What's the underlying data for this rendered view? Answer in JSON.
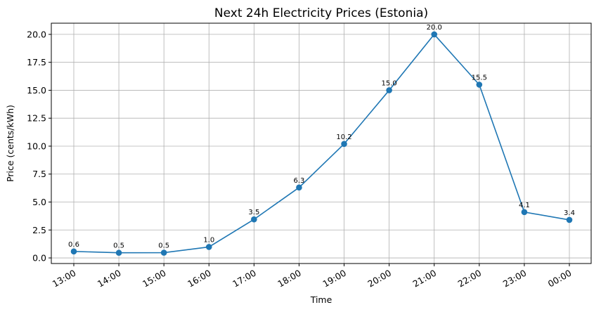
{
  "chart_data": {
    "type": "line",
    "title": "Next 24h Electricity Prices (Estonia)",
    "xlabel": "Time",
    "ylabel": "Price (cents/kWh)",
    "categories": [
      "13:00",
      "14:00",
      "15:00",
      "16:00",
      "17:00",
      "18:00",
      "19:00",
      "20:00",
      "21:00",
      "22:00",
      "23:00",
      "00:00"
    ],
    "series": [
      {
        "values": [
          0.58,
          0.46,
          0.47,
          0.98,
          3.45,
          6.3,
          10.2,
          15.0,
          20.0,
          15.5,
          4.1,
          3.4
        ],
        "labels": [
          "0.6",
          "0.5",
          "0.5",
          "1.0",
          "3.5",
          "6.3",
          "10.2",
          "15.0",
          "20.0",
          "15.5",
          "4.1",
          "3.4"
        ],
        "color": "#1f77b4"
      }
    ],
    "ylim": [
      -0.5,
      21.0
    ],
    "yticks": [
      "0.0",
      "2.5",
      "5.0",
      "7.5",
      "10.0",
      "12.5",
      "15.0",
      "17.5",
      "20.0"
    ],
    "ytick_values": [
      0,
      2.5,
      5,
      7.5,
      10,
      12.5,
      15,
      17.5,
      20
    ],
    "grid": true,
    "legend": "none"
  }
}
